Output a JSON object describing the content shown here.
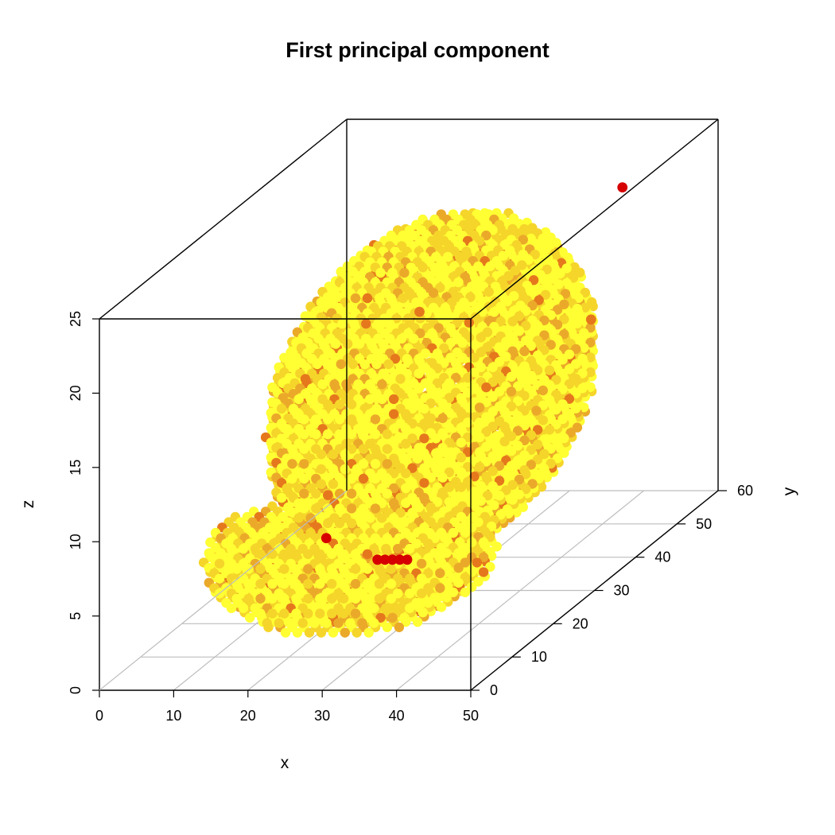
{
  "chart_data": {
    "type": "scatter3d",
    "title": "First principal component",
    "xlabel": "x",
    "ylabel": "y",
    "zlabel": "z",
    "xlim": [
      0,
      50
    ],
    "ylim": [
      0,
      60
    ],
    "zlim": [
      0,
      25
    ],
    "x_ticks": [
      "0",
      "10",
      "20",
      "30",
      "40",
      "50"
    ],
    "y_ticks": [
      "0",
      "10",
      "20",
      "30",
      "40",
      "50",
      "60"
    ],
    "z_ticks": [
      "0",
      "5",
      "10",
      "15",
      "20",
      "25"
    ],
    "grid": true,
    "box": true,
    "colors": {
      "low": "#ffff33",
      "mid_low": "#f5d52a",
      "mid": "#eba92a",
      "mid_high": "#e5781d",
      "high": "#d60000"
    },
    "point_cloud": {
      "shape": "head-shaped volume of voxels, viewed in perspective",
      "x_range": [
        8,
        46
      ],
      "y_range": [
        5,
        55
      ],
      "z_range": [
        2,
        24
      ],
      "dominant_color": "#ffff33",
      "highlight_voxels": [
        {
          "x": 33,
          "y": 8,
          "z": 7,
          "color": "#d60000"
        },
        {
          "x": 34,
          "y": 8,
          "z": 7,
          "color": "#d60000"
        },
        {
          "x": 35,
          "y": 8,
          "z": 7,
          "color": "#d60000"
        },
        {
          "x": 36,
          "y": 8,
          "z": 7,
          "color": "#d60000"
        },
        {
          "x": 37,
          "y": 8,
          "z": 7,
          "color": "#d60000"
        },
        {
          "x": 25,
          "y": 10,
          "z": 8,
          "color": "#d60000"
        },
        {
          "x": 46,
          "y": 44,
          "z": 24,
          "color": "#d60000"
        },
        {
          "x": 32,
          "y": 20,
          "z": 21,
          "color": "#e5781d"
        },
        {
          "x": 23,
          "y": 14,
          "z": 10,
          "color": "#e5781d"
        },
        {
          "x": 44,
          "y": 40,
          "z": 16,
          "color": "#e5781d"
        }
      ]
    }
  }
}
